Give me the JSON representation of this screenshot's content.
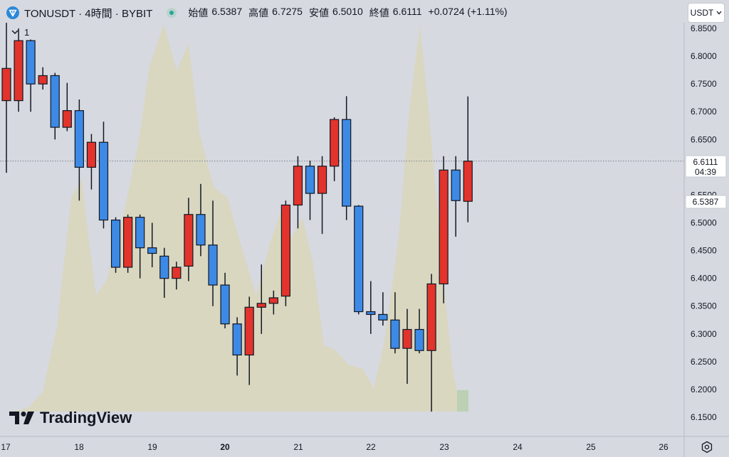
{
  "header": {
    "symbol": "TONUSDT · 4時間 · BYBIT",
    "ohlc": [
      {
        "label": "始値",
        "value": "6.5387"
      },
      {
        "label": "高値",
        "value": "6.7275"
      },
      {
        "label": "安値",
        "value": "6.5010"
      },
      {
        "label": "終値",
        "value": "6.6111"
      }
    ],
    "change": "+0.0724 (+1.11%)"
  },
  "indicator_toggle": "1",
  "currency_button": "USDT",
  "logo_text": "TradingView",
  "price_tags": {
    "last_price": "6.6111",
    "countdown": "04:39",
    "open_price": "6.5387"
  },
  "colors": {
    "up": "#e2342c",
    "down": "#3d8ae6",
    "wick": "#131722",
    "profile": "#d9d6bc",
    "background": "#d6d9e0"
  },
  "chart_data": {
    "type": "candlestick",
    "timeframe": "4時間",
    "x_ticks": [
      "17",
      "18",
      "19",
      "20",
      "21",
      "22",
      "23",
      "24",
      "25",
      "26"
    ],
    "y_ticks": [
      "6.8500",
      "6.8000",
      "6.7500",
      "6.7000",
      "6.6500",
      "6.6000",
      "6.5500",
      "6.5000",
      "6.4500",
      "6.4000",
      "6.3500",
      "6.3000",
      "6.2500",
      "6.2000",
      "6.1500"
    ],
    "ylim": [
      6.135,
      6.865
    ],
    "last_price_line": 6.6111,
    "candles": [
      {
        "t": 0,
        "o": 6.72,
        "h": 6.86,
        "l": 6.59,
        "c": 6.778
      },
      {
        "t": 1,
        "o": 6.72,
        "h": 6.85,
        "l": 6.7,
        "c": 6.828
      },
      {
        "t": 2,
        "o": 6.828,
        "h": 6.83,
        "l": 6.7,
        "c": 6.75
      },
      {
        "t": 3,
        "o": 6.75,
        "h": 6.78,
        "l": 6.74,
        "c": 6.765
      },
      {
        "t": 4,
        "o": 6.765,
        "h": 6.77,
        "l": 6.65,
        "c": 6.672
      },
      {
        "t": 5,
        "o": 6.672,
        "h": 6.752,
        "l": 6.665,
        "c": 6.702
      },
      {
        "t": 6,
        "o": 6.702,
        "h": 6.722,
        "l": 6.54,
        "c": 6.6
      },
      {
        "t": 7,
        "o": 6.6,
        "h": 6.66,
        "l": 6.56,
        "c": 6.645
      },
      {
        "t": 8,
        "o": 6.645,
        "h": 6.682,
        "l": 6.49,
        "c": 6.505
      },
      {
        "t": 9,
        "o": 6.505,
        "h": 6.51,
        "l": 6.41,
        "c": 6.42
      },
      {
        "t": 10,
        "o": 6.42,
        "h": 6.515,
        "l": 6.41,
        "c": 6.51
      },
      {
        "t": 11,
        "o": 6.51,
        "h": 6.515,
        "l": 6.4,
        "c": 6.455
      },
      {
        "t": 12,
        "o": 6.455,
        "h": 6.5,
        "l": 6.42,
        "c": 6.445
      },
      {
        "t": 13,
        "o": 6.44,
        "h": 6.455,
        "l": 6.365,
        "c": 6.4
      },
      {
        "t": 14,
        "o": 6.4,
        "h": 6.43,
        "l": 6.38,
        "c": 6.42
      },
      {
        "t": 15,
        "o": 6.422,
        "h": 6.545,
        "l": 6.395,
        "c": 6.515
      },
      {
        "t": 16,
        "o": 6.515,
        "h": 6.57,
        "l": 6.44,
        "c": 6.46
      },
      {
        "t": 17,
        "o": 6.46,
        "h": 6.54,
        "l": 6.35,
        "c": 6.388
      },
      {
        "t": 18,
        "o": 6.388,
        "h": 6.41,
        "l": 6.31,
        "c": 6.318
      },
      {
        "t": 19,
        "o": 6.318,
        "h": 6.33,
        "l": 6.225,
        "c": 6.262
      },
      {
        "t": 20,
        "o": 6.262,
        "h": 6.367,
        "l": 6.208,
        "c": 6.348
      },
      {
        "t": 21,
        "o": 6.348,
        "h": 6.425,
        "l": 6.3,
        "c": 6.355
      },
      {
        "t": 22,
        "o": 6.355,
        "h": 6.378,
        "l": 6.335,
        "c": 6.365
      },
      {
        "t": 23,
        "o": 6.368,
        "h": 6.54,
        "l": 6.35,
        "c": 6.532
      },
      {
        "t": 24,
        "o": 6.532,
        "h": 6.62,
        "l": 6.49,
        "c": 6.602
      },
      {
        "t": 25,
        "o": 6.602,
        "h": 6.612,
        "l": 6.505,
        "c": 6.553
      },
      {
        "t": 26,
        "o": 6.553,
        "h": 6.62,
        "l": 6.48,
        "c": 6.602
      },
      {
        "t": 27,
        "o": 6.602,
        "h": 6.69,
        "l": 6.575,
        "c": 6.686
      },
      {
        "t": 28,
        "o": 6.686,
        "h": 6.728,
        "l": 6.505,
        "c": 6.53
      },
      {
        "t": 29,
        "o": 6.53,
        "h": 6.532,
        "l": 6.335,
        "c": 6.34
      },
      {
        "t": 30,
        "o": 6.34,
        "h": 6.395,
        "l": 6.3,
        "c": 6.335
      },
      {
        "t": 31,
        "o": 6.335,
        "h": 6.375,
        "l": 6.315,
        "c": 6.325
      },
      {
        "t": 32,
        "o": 6.325,
        "h": 6.375,
        "l": 6.265,
        "c": 6.274
      },
      {
        "t": 33,
        "o": 6.274,
        "h": 6.345,
        "l": 6.21,
        "c": 6.308
      },
      {
        "t": 34,
        "o": 6.308,
        "h": 6.345,
        "l": 6.265,
        "c": 6.27
      },
      {
        "t": 35,
        "o": 6.27,
        "h": 6.408,
        "l": 6.16,
        "c": 6.39
      },
      {
        "t": 36,
        "o": 6.39,
        "h": 6.62,
        "l": 6.355,
        "c": 6.595
      },
      {
        "t": 37,
        "o": 6.595,
        "h": 6.62,
        "l": 6.475,
        "c": 6.54
      },
      {
        "t": 38,
        "o": 6.5387,
        "h": 6.7275,
        "l": 6.501,
        "c": 6.6111
      }
    ],
    "volume_profile": [
      {
        "price": 6.865,
        "v": 0.0
      },
      {
        "price": 6.845,
        "v": 0.08
      },
      {
        "price": 6.82,
        "v": 0.16
      },
      {
        "price": 6.8,
        "v": 0.22
      },
      {
        "price": 6.78,
        "v": 0.3
      },
      {
        "price": 6.76,
        "v": 0.28
      },
      {
        "price": 6.74,
        "v": 0.22
      },
      {
        "price": 6.72,
        "v": 0.18
      },
      {
        "price": 6.7,
        "v": 0.22
      },
      {
        "price": 6.68,
        "v": 0.28
      },
      {
        "price": 6.66,
        "v": 0.38
      },
      {
        "price": 6.64,
        "v": 0.48
      },
      {
        "price": 6.62,
        "v": 0.6
      },
      {
        "price": 6.6,
        "v": 0.72
      },
      {
        "price": 6.58,
        "v": 0.84
      },
      {
        "price": 6.56,
        "v": 0.92
      },
      {
        "price": 6.54,
        "v": 0.98
      },
      {
        "price": 6.52,
        "v": 1.0
      },
      {
        "price": 6.5,
        "v": 0.97
      },
      {
        "price": 6.48,
        "v": 0.92
      },
      {
        "price": 6.46,
        "v": 0.86
      },
      {
        "price": 6.44,
        "v": 0.8
      },
      {
        "price": 6.42,
        "v": 0.74
      },
      {
        "price": 6.4,
        "v": 0.68
      },
      {
        "price": 6.38,
        "v": 0.6
      },
      {
        "price": 6.36,
        "v": 0.54
      },
      {
        "price": 6.34,
        "v": 0.5
      },
      {
        "price": 6.32,
        "v": 0.44
      },
      {
        "price": 6.3,
        "v": 0.38
      },
      {
        "price": 6.28,
        "v": 0.32
      },
      {
        "price": 6.26,
        "v": 0.26
      },
      {
        "price": 6.24,
        "v": 0.2
      },
      {
        "price": 6.22,
        "v": 0.14
      },
      {
        "price": 6.2,
        "v": 0.08
      },
      {
        "price": 6.18,
        "v": 0.04
      },
      {
        "price": 6.16,
        "v": 0.0
      }
    ]
  }
}
